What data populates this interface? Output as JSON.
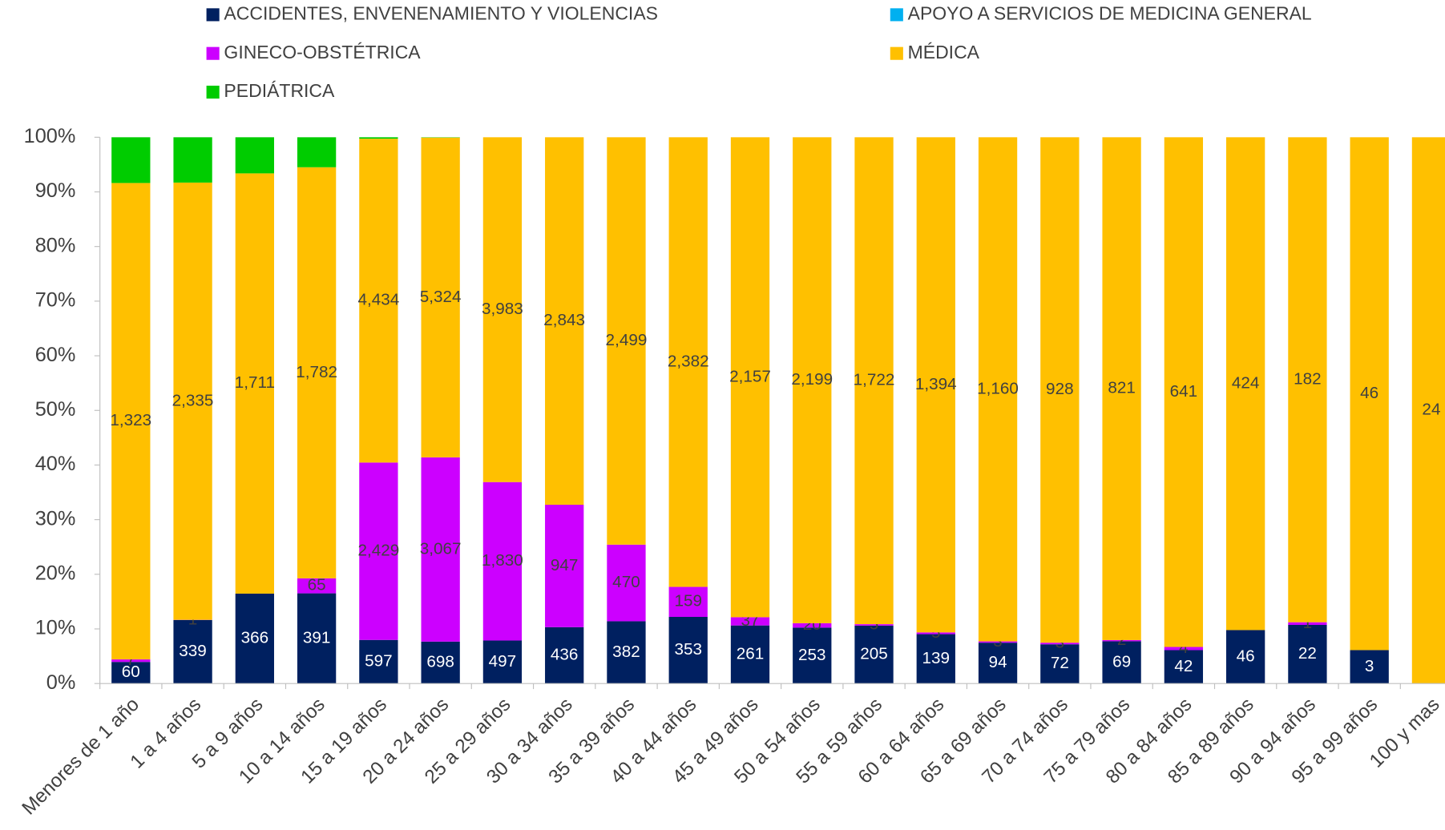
{
  "chart_data": {
    "type": "bar100",
    "categories": [
      "Menores de 1 año",
      "1 a 4 años",
      "5 a 9 años",
      "10 a 14 años",
      "15 a 19 años",
      "20 a 24 años",
      "25 a 29 años",
      "30 a 34 años",
      "35 a 39 años",
      "40 a 44 años",
      "45 a 49 años",
      "50 a 54 años",
      "55 a 59 años",
      "60 a 64 años",
      "65 a 69 años",
      "70 a 74 años",
      "75 a 79 años",
      "80 a 84 años",
      "85 a 89 años",
      "90 a 94 años",
      "95 a 99 años",
      "100 y mas"
    ],
    "series": [
      {
        "name": "ACCIDENTES, ENVENENAMIENTO Y VIOLENCIAS",
        "color": "#002060",
        "values": [
          60,
          339,
          366,
          391,
          597,
          698,
          497,
          436,
          382,
          353,
          261,
          253,
          205,
          139,
          94,
          72,
          69,
          42,
          46,
          22,
          3,
          0
        ],
        "value_labels": [
          "60",
          "339",
          "366",
          "391",
          "597",
          "698",
          "497",
          "436",
          "382",
          "353",
          "261",
          "253",
          "205",
          "139",
          "94",
          "72",
          "69",
          "42",
          "46",
          "22",
          "3",
          null
        ]
      },
      {
        "name": "APOYO A SERVICIOS DE MEDICINA GENERAL",
        "color": "#00b0f0",
        "values": [
          0,
          0,
          0,
          0,
          0,
          0,
          0,
          0,
          0,
          0,
          0,
          0,
          0,
          0,
          0,
          0,
          0,
          0,
          0,
          0,
          0,
          0
        ]
      },
      {
        "name": "GINECO-OBSTÉTRICA",
        "color": "#cc00ff",
        "values": [
          7,
          1,
          0,
          65,
          2429,
          3067,
          1830,
          947,
          470,
          159,
          37,
          20,
          5,
          5,
          3,
          3,
          2,
          4,
          0,
          1,
          0,
          0
        ],
        "value_labels": [
          "7",
          "1",
          null,
          "65",
          "2,429",
          "3,067",
          "1,830",
          "947",
          "470",
          "159",
          "37",
          "20",
          "5",
          "5",
          "3",
          "3",
          "2",
          "4",
          null,
          "1",
          null,
          null
        ]
      },
      {
        "name": "MÉDICA",
        "color": "#ffc000",
        "values": [
          1323,
          2335,
          1711,
          1782,
          4434,
          5324,
          3983,
          2843,
          2499,
          2382,
          2157,
          2199,
          1722,
          1394,
          1160,
          928,
          821,
          641,
          424,
          182,
          46,
          24
        ],
        "value_labels": [
          "1,323",
          "2,335",
          "1,711",
          "1,782",
          "4,434",
          "5,324",
          "3,983",
          "2,843",
          "2,499",
          "2,382",
          "2,157",
          "2,199",
          "1,722",
          "1,394",
          "1,160",
          "928",
          "821",
          "641",
          "424",
          "182",
          "46",
          "24"
        ]
      },
      {
        "name": "PEDIÁTRICA",
        "color": "#00cc00",
        "values": [
          127,
          242,
          147,
          130,
          20,
          5,
          0,
          0,
          0,
          0,
          0,
          0,
          0,
          0,
          0,
          0,
          0,
          0,
          0,
          0,
          0,
          0
        ]
      }
    ],
    "ylim": [
      0,
      100
    ],
    "yticks": [
      {
        "value": 0,
        "label": "0%"
      },
      {
        "value": 10,
        "label": "10%"
      },
      {
        "value": 20,
        "label": "20%"
      },
      {
        "value": 30,
        "label": "30%"
      },
      {
        "value": 40,
        "label": "40%"
      },
      {
        "value": 50,
        "label": "50%"
      },
      {
        "value": 60,
        "label": "60%"
      },
      {
        "value": 70,
        "label": "70%"
      },
      {
        "value": 80,
        "label": "80%"
      },
      {
        "value": 90,
        "label": "90%"
      },
      {
        "value": 100,
        "label": "100%"
      }
    ],
    "grid": false,
    "legend": "top"
  }
}
